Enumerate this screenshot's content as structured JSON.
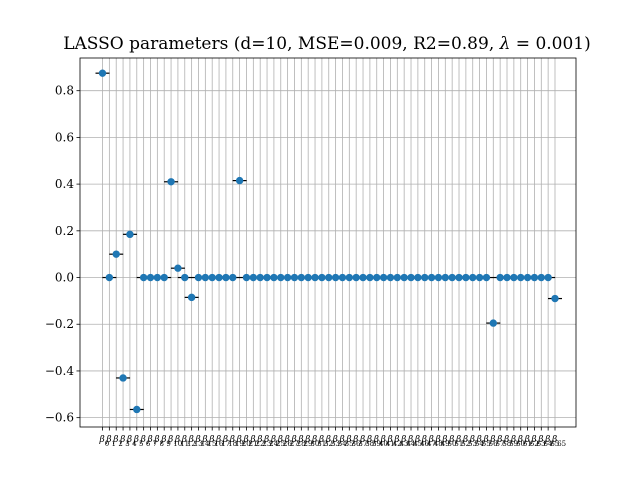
{
  "chart_data": {
    "type": "scatter",
    "title_prefix": "LASSO parameters (d=10, MSE=0.009, R2=0.89, ",
    "title_lambda": "λ",
    "title_suffix": " = 0.001)",
    "xlabel": "",
    "ylabel": "",
    "ylim": [
      -0.64,
      0.94
    ],
    "yticks": [
      0.8,
      0.6,
      0.4,
      0.2,
      0.0,
      -0.2,
      -0.4,
      -0.6
    ],
    "ytick_labels": [
      "0.8",
      "0.6",
      "0.4",
      "0.2",
      "0.0",
      "−0.2",
      "−0.4",
      "−0.6"
    ],
    "grid": true,
    "point_color": "#1f77b4",
    "whisker_color": "#000000",
    "grid_color": "#b0b0b0",
    "x_symbol": "β",
    "x_index_start": 0,
    "last_label_visible": "65",
    "values": [
      0.875,
      0.0,
      0.1,
      -0.43,
      0.185,
      -0.565,
      0.0,
      0.0,
      0.0,
      0.0,
      0.41,
      0.04,
      0.0,
      -0.085,
      0.0,
      0.0,
      0.0,
      0.0,
      0.0,
      0.0,
      0.415,
      0.0,
      0.0,
      0.0,
      0.0,
      0.0,
      0.0,
      0.0,
      0.0,
      0.0,
      0.0,
      0.0,
      0.0,
      0.0,
      0.0,
      0.0,
      0.0,
      0.0,
      0.0,
      0.0,
      0.0,
      0.0,
      0.0,
      0.0,
      0.0,
      0.0,
      0.0,
      0.0,
      0.0,
      0.0,
      0.0,
      0.0,
      0.0,
      0.0,
      0.0,
      0.0,
      0.0,
      -0.195,
      0.0,
      0.0,
      0.0,
      0.0,
      0.0,
      0.0,
      0.0,
      0.0,
      -0.09
    ]
  }
}
